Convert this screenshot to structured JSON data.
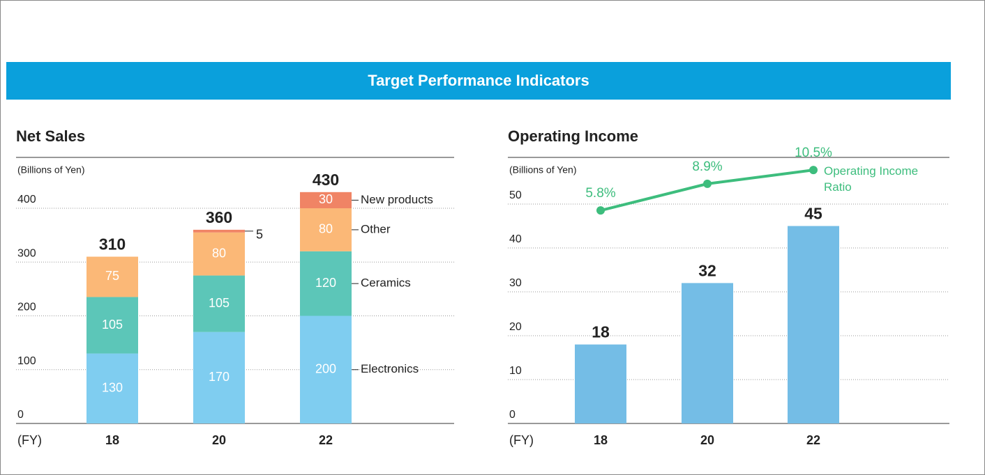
{
  "header": {
    "title": "Target Performance Indicators"
  },
  "chart_data": [
    {
      "type": "stacked_bar",
      "title": "Net Sales",
      "unit_label": "(Billions of Yen)",
      "x_label": "(FY)",
      "categories": [
        "18",
        "20",
        "22"
      ],
      "series": [
        {
          "name": "Electronics",
          "color": "#7fcdf0",
          "values": [
            130,
            170,
            200
          ]
        },
        {
          "name": "Ceramics",
          "color": "#5cc6b8",
          "values": [
            105,
            105,
            120
          ]
        },
        {
          "name": "Other",
          "color": "#fbb877",
          "values": [
            75,
            80,
            80
          ]
        },
        {
          "name": "New products",
          "color": "#f08465",
          "values": [
            null,
            5,
            30
          ]
        }
      ],
      "totals": [
        310,
        360,
        430
      ],
      "ylim": [
        0,
        400
      ],
      "yticks": [
        0,
        100,
        200,
        300,
        400
      ],
      "grid": true
    },
    {
      "type": "bar_line",
      "title": "Operating Income",
      "unit_label": "(Billions of Yen)",
      "x_label": "(FY)",
      "categories": [
        "18",
        "20",
        "22"
      ],
      "series": [
        {
          "name": null,
          "color": "#74bde6",
          "values": [
            18,
            32,
            45
          ]
        },
        {
          "name": "Operating Income Ratio",
          "color": "#3dbd7d",
          "axis": "y2",
          "values": [
            5.8,
            8.9,
            10.5
          ],
          "value_labels": [
            "5.8%",
            "8.9%",
            "10.5%"
          ]
        }
      ],
      "ylim": [
        0,
        50
      ],
      "yticks": [
        0,
        10,
        20,
        30,
        40,
        50
      ],
      "y2lim": [
        5,
        11
      ],
      "grid": true
    }
  ]
}
